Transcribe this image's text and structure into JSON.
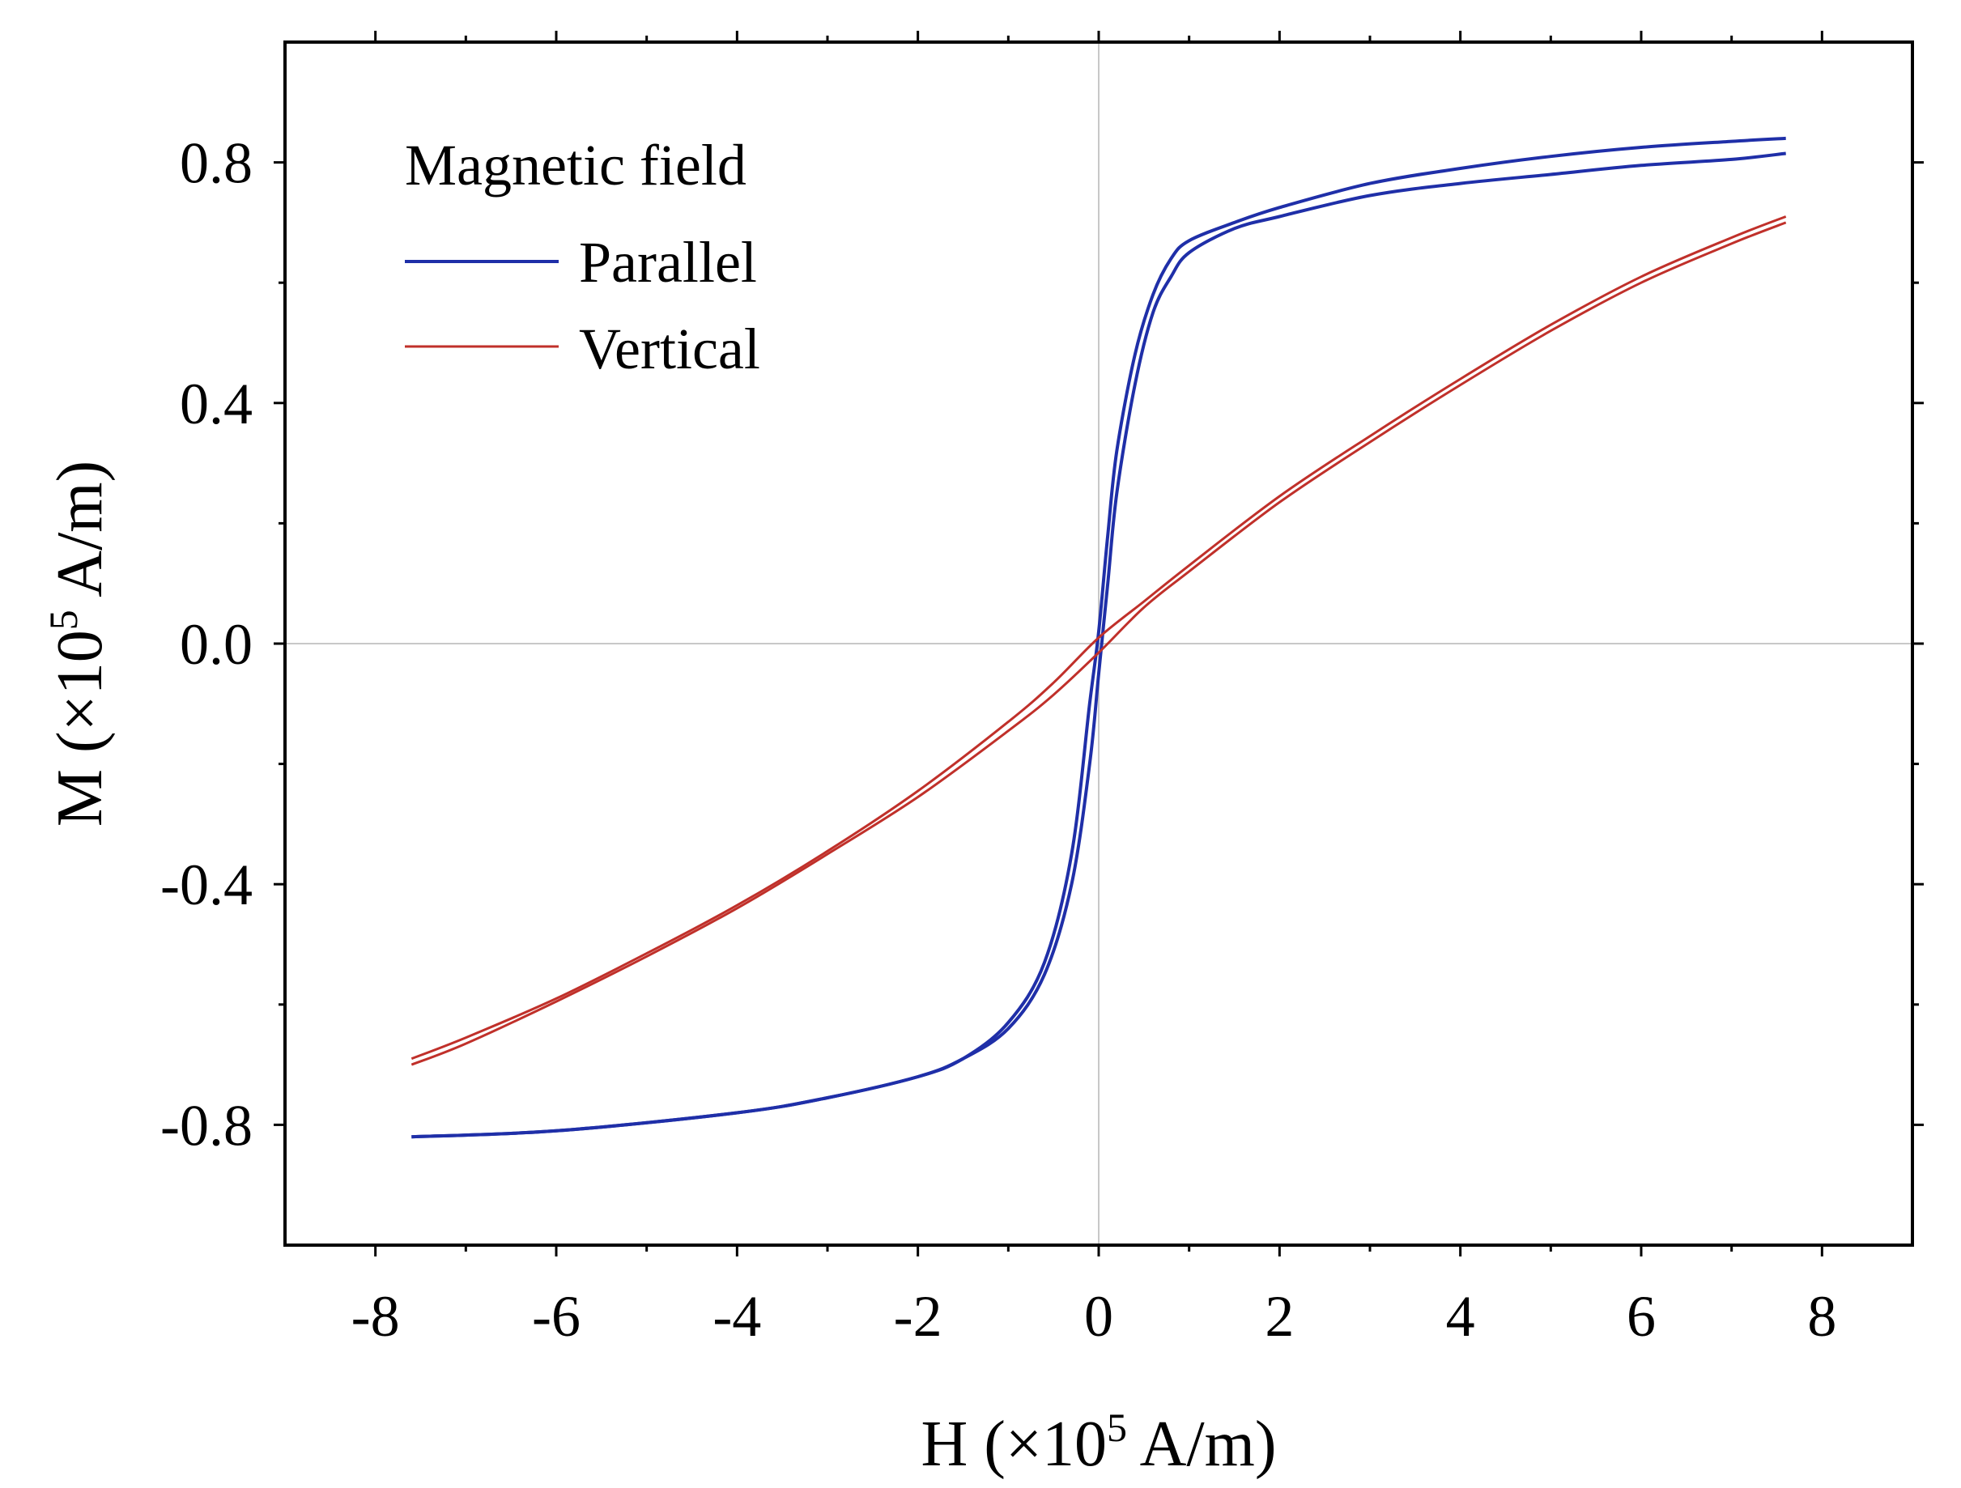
{
  "chart_data": {
    "type": "line",
    "title": "",
    "xlabel": {
      "pre": "H (×10",
      "sup": "5",
      "post": " A/m)"
    },
    "ylabel": {
      "pre": "M (×10",
      "sup": "5",
      "post": " A/m)"
    },
    "xlim": [
      -9,
      9
    ],
    "ylim": [
      -1.0,
      1.0
    ],
    "xticks": [
      -8,
      -6,
      -4,
      -2,
      0,
      2,
      4,
      6,
      8
    ],
    "xtick_labels": [
      "-8",
      "-6",
      "-4",
      "-2",
      "0",
      "2",
      "4",
      "6",
      "8"
    ],
    "yticks": [
      -0.8,
      -0.4,
      0.0,
      0.4,
      0.8
    ],
    "ytick_labels": [
      "-0.8",
      "-0.4",
      "0.0",
      "0.4",
      "0.8"
    ],
    "minor_xticks": [
      -7,
      -5,
      -3,
      -1,
      1,
      3,
      5,
      7
    ],
    "minor_yticks": [
      -0.6,
      -0.2,
      0.2,
      0.6
    ],
    "zero_lines": true,
    "legend": {
      "title": "Magnetic field",
      "placement": "top-left",
      "entries": [
        "Parallel",
        "Vertical"
      ]
    },
    "series": [
      {
        "name": "Parallel",
        "color": "#1f2fa8",
        "branches": [
          {
            "branch": "ascending",
            "x": [
              -7.6,
              -6,
              -4,
              -3,
              -2,
              -1.5,
              -1,
              -0.6,
              -0.3,
              -0.1,
              0,
              0.1,
              0.2,
              0.4,
              0.6,
              0.8,
              1.0,
              1.5,
              2,
              3,
              4,
              5,
              6,
              7,
              7.6
            ],
            "y": [
              -0.82,
              -0.81,
              -0.78,
              -0.755,
              -0.72,
              -0.69,
              -0.64,
              -0.55,
              -0.4,
              -0.2,
              -0.05,
              0.1,
              0.25,
              0.43,
              0.55,
              0.61,
              0.65,
              0.69,
              0.71,
              0.745,
              0.765,
              0.78,
              0.795,
              0.805,
              0.815
            ]
          },
          {
            "branch": "descending",
            "x": [
              7.6,
              7,
              6,
              5,
              4,
              3,
              2,
              1.5,
              1.0,
              0.8,
              0.6,
              0.4,
              0.2,
              0.1,
              0,
              -0.1,
              -0.3,
              -0.6,
              -1,
              -1.5,
              -2,
              -3,
              -4,
              -6,
              -7.6
            ],
            "y": [
              0.84,
              0.835,
              0.825,
              0.81,
              0.79,
              0.765,
              0.725,
              0.7,
              0.67,
              0.64,
              0.58,
              0.48,
              0.32,
              0.18,
              0.02,
              -0.1,
              -0.35,
              -0.53,
              -0.63,
              -0.69,
              -0.72,
              -0.755,
              -0.78,
              -0.81,
              -0.82
            ]
          }
        ]
      },
      {
        "name": "Vertical",
        "color": "#c0302a",
        "branches": [
          {
            "branch": "ascending",
            "x": [
              -7.6,
              -7,
              -6,
              -5,
              -4,
              -3,
              -2,
              -1,
              -0.5,
              0,
              0.5,
              1,
              2,
              3,
              4,
              5,
              6,
              7,
              7.6
            ],
            "y": [
              -0.7,
              -0.665,
              -0.595,
              -0.52,
              -0.44,
              -0.35,
              -0.255,
              -0.145,
              -0.085,
              -0.015,
              0.06,
              0.12,
              0.235,
              0.335,
              0.43,
              0.52,
              0.6,
              0.665,
              0.7
            ]
          },
          {
            "branch": "descending",
            "x": [
              7.6,
              7,
              6,
              5,
              4,
              3,
              2,
              1,
              0.5,
              0,
              -0.5,
              -1,
              -2,
              -3,
              -4,
              -5,
              -6,
              -7,
              -7.6
            ],
            "y": [
              0.71,
              0.675,
              0.61,
              0.53,
              0.44,
              0.345,
              0.245,
              0.13,
              0.07,
              0.01,
              -0.065,
              -0.13,
              -0.245,
              -0.345,
              -0.435,
              -0.515,
              -0.59,
              -0.655,
              -0.69
            ]
          }
        ]
      }
    ]
  }
}
